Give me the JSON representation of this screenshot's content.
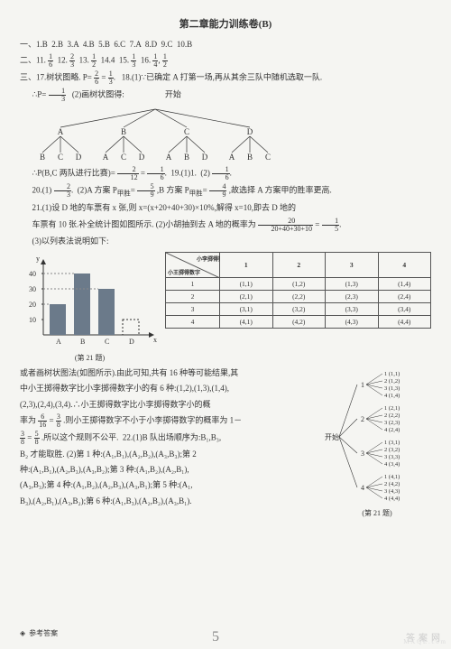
{
  "title": "第二章能力训练卷(B)",
  "section1": {
    "prefix": "一、1.",
    "a1": "B",
    "a2": "2.B",
    "a3": "3.A",
    "a4": "4.B",
    "a5": "5.B",
    "a6": "6.C",
    "a7": "7.A",
    "a8": "8.D",
    "a9": "9.C",
    "a10": "10.B"
  },
  "section2": {
    "prefix": "二、11.",
    "f11n": "1",
    "f11d": "6",
    "l12": "12.",
    "f12n": "2",
    "f12d": "3",
    "l13": "13.",
    "f13n": "1",
    "f13d": "2",
    "l14": "14.4",
    "l15": "15.",
    "f15n": "1",
    "f15d": "3",
    "l16": "16.",
    "f16an": "1",
    "f16ad": "4",
    "f16bn": "1",
    "f16bd": "2"
  },
  "section3": {
    "l17a": "三、17.树状图略.",
    "peq": "P=",
    "p17n": "2",
    "p17d": "6",
    "eq": "=",
    "p17rn": "1",
    "p17rd": "3",
    "dot": ".",
    "l18a": "18.(1)∵已确定 A 打第一场,再从其余三队中随机选取一队.",
    "l18b": "∴P=",
    "p18n": "1",
    "p18d": "3",
    "l18c": "(2)画树状图得:",
    "treeTop": "开始",
    "nA": "A",
    "nB": "B",
    "nC": "C",
    "nD": "D",
    "l19a": "∴P(B,C 两队进行比赛)=",
    "p19n": "2",
    "p19d": "12",
    "p19rn": "1",
    "p19rd": "6",
    "l19b": "19.(1)1.",
    "l19c": "(2)",
    "p19cn": "1",
    "p19cd": "6"
  },
  "q20": {
    "l1": "20.(1)",
    "f1n": "2",
    "f1d": "3",
    "l2": "(2)A 方案 P",
    "sub1": "甲胜",
    "eq1": "=",
    "f2n": "5",
    "f2d": "9",
    "l3": ",B 方案 P",
    "sub2": "甲胜",
    "eq2": "=",
    "f3n": "4",
    "f3d": "9",
    "l4": ",故选择 A 方案甲的胜率更高."
  },
  "q21": {
    "l1": "21.(1)设 D 地的车票有 x 张,则 x=(x+20+40+30)×10%,解得 x=10,即去 D 地的",
    "l2": "车票有 10 张.补全统计图如图所示. (2)小胡抽到去 A 地的概率为",
    "fn": "20",
    "fd": "20+40+30+10",
    "eq": "=",
    "frn": "1",
    "frd": "5",
    "dot": ".",
    "l3": "(3)以列表法说明如下:"
  },
  "chart": {
    "ylabel": "y",
    "xA": "A",
    "xB": "B",
    "xC": "C",
    "xD": "D",
    "xlabel": "x",
    "ticks": [
      "10",
      "20",
      "30",
      "40"
    ],
    "values": [
      20,
      40,
      30,
      10
    ],
    "bar_color": "#6b7a8a",
    "axis_color": "#333",
    "dash_color": "#888",
    "caption": "(第 21 题)"
  },
  "table": {
    "diagTop": "小李掷得数字",
    "diagBot": "小王掷得数字",
    "heads": [
      "1",
      "2",
      "3",
      "4"
    ],
    "rows": [
      [
        "1",
        "(1,1)",
        "(1,2)",
        "(1,3)",
        "(1,4)"
      ],
      [
        "2",
        "(2,1)",
        "(2,2)",
        "(2,3)",
        "(2,4)"
      ],
      [
        "3",
        "(3,1)",
        "(3,2)",
        "(3,3)",
        "(3,4)"
      ],
      [
        "4",
        "(4,1)",
        "(4,2)",
        "(4,3)",
        "(4,4)"
      ]
    ]
  },
  "para": {
    "t1": "或者画树状图法(如图所示).由此可知,共有 16 种等可能结果,其",
    "t2": "中小王掷得数字比小李掷得数字小的有 6 种:(1,2),(1,3),(1,4),",
    "t3": "(2,3),(2,4),(3,4).∴小王掷得数字比小李掷得数字小的概",
    "t4a": "率为",
    "fan": "6",
    "fad": "16",
    "eq1": "=",
    "fbn": "3",
    "fbd": "8",
    "t4b": ".则小王掷得数字不小于小李掷得数字的概率为 1－",
    "t5a": "",
    "fcn": "3",
    "fcd": "8",
    "eq2": "=",
    "fdn": "5",
    "fdd": "8",
    "t5b": ".所以这个规则不公平.",
    "q22a": "22.(1)B 队出场顺序为:B₁,B₃,",
    "q22b": "B₂ 才能取胜. (2)第 1 种:(A₁,B₁),(A₂,B₂),(A₃,B₃);第 2",
    "q22c": "种:(A₁,B₁),(A₂,B₃),(A₃,B₂);第 3 种:(A₁,B₂),(A₂,B₁),",
    "q22d": "(A₃,B₃);第 4 种:(A₁,B₂),(A₂,B₃),(A₃,B₁);第 5 种:(A₁,",
    "q22e": "B₃),(A₂,B₁),(A₃,B₂);第 6 种:(A₁,B₃),(A₂,B₂),(A₃,B₁)."
  },
  "tree2": {
    "root": "开始",
    "L1": [
      "1",
      "2",
      "3",
      "4"
    ],
    "leaves": [
      [
        "1 (1,1)",
        "2 (1,2)",
        "3 (1,3)",
        "4 (1,4)"
      ],
      [
        "1 (2,1)",
        "2 (2,2)",
        "3 (2,3)",
        "4 (2,4)"
      ],
      [
        "1 (3,1)",
        "2 (3,2)",
        "3 (3,3)",
        "4 (3,4)"
      ],
      [
        "1 (4,1)",
        "2 (4,2)",
        "3 (4,3)",
        "4 (4,4)"
      ]
    ],
    "caption": "(第 21 题)"
  },
  "footer": "参考答案",
  "hand": "5",
  "wm1": "答案网",
  "wm2": "M X Q E . c o m"
}
